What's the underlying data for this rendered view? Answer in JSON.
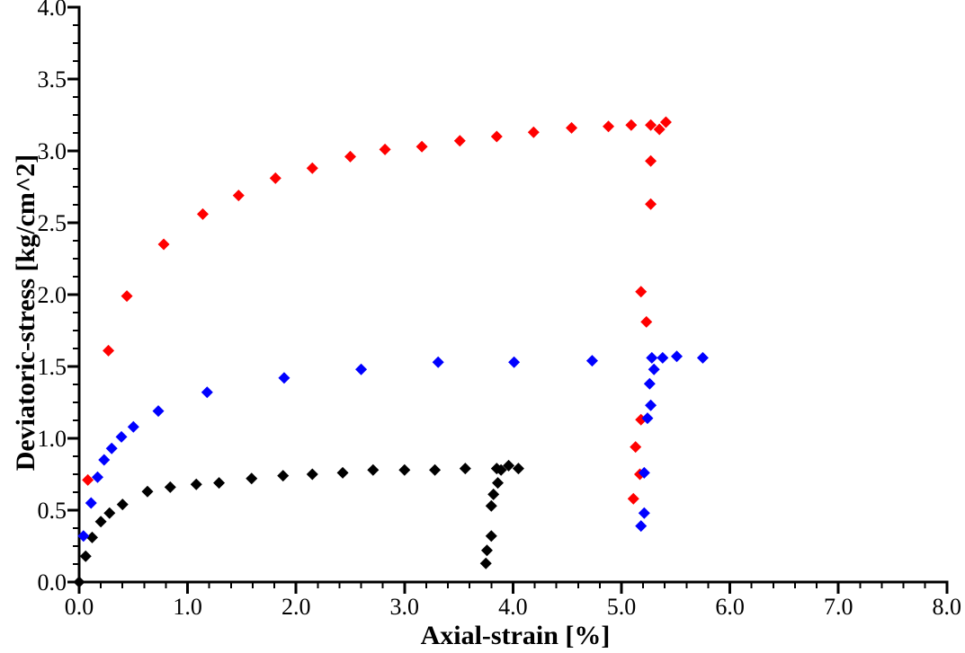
{
  "chart_data": {
    "type": "scatter",
    "title": "",
    "xlabel": "Axial-strain [%]",
    "ylabel": "Deviatoric-stress [kg/cm^2]",
    "xlim": [
      0.0,
      8.0
    ],
    "ylim": [
      0.0,
      4.0
    ],
    "grid": false,
    "legend": "none",
    "marker": "diamond",
    "x_major_ticks": [
      0.0,
      1.0,
      2.0,
      3.0,
      4.0,
      5.0,
      6.0,
      7.0,
      8.0
    ],
    "x_tick_labels": [
      "0.0",
      "1.0",
      "2.0",
      "3.0",
      "4.0",
      "5.0",
      "6.0",
      "7.0",
      "8.0"
    ],
    "x_minor_step": 0.2,
    "y_major_ticks": [
      0.0,
      0.5,
      1.0,
      1.5,
      2.0,
      2.5,
      3.0,
      3.5,
      4.0
    ],
    "y_tick_labels": [
      "0.0",
      "0.5",
      "1.0",
      "1.5",
      "2.0",
      "2.5",
      "3.0",
      "3.5",
      "4.0"
    ],
    "y_minor_step": 0.125,
    "axis_color": "#000000",
    "series": [
      {
        "name": "black-series",
        "color": "#000000",
        "points": [
          [
            0.0,
            0.0
          ],
          [
            0.06,
            0.18
          ],
          [
            0.12,
            0.31
          ],
          [
            0.2,
            0.42
          ],
          [
            0.28,
            0.48
          ],
          [
            0.4,
            0.54
          ],
          [
            0.63,
            0.63
          ],
          [
            0.84,
            0.66
          ],
          [
            1.08,
            0.68
          ],
          [
            1.29,
            0.69
          ],
          [
            1.59,
            0.72
          ],
          [
            1.88,
            0.74
          ],
          [
            2.15,
            0.75
          ],
          [
            2.43,
            0.76
          ],
          [
            2.71,
            0.78
          ],
          [
            3.0,
            0.78
          ],
          [
            3.28,
            0.78
          ],
          [
            3.56,
            0.79
          ],
          [
            3.85,
            0.79
          ],
          [
            3.89,
            0.78
          ],
          [
            3.96,
            0.81
          ],
          [
            4.05,
            0.79
          ],
          [
            3.86,
            0.69
          ],
          [
            3.82,
            0.61
          ],
          [
            3.8,
            0.53
          ],
          [
            3.8,
            0.32
          ],
          [
            3.76,
            0.22
          ],
          [
            3.75,
            0.13
          ]
        ]
      },
      {
        "name": "red-series",
        "color": "#FF0000",
        "points": [
          [
            0.08,
            0.71
          ],
          [
            0.27,
            1.61
          ],
          [
            0.44,
            1.99
          ],
          [
            0.78,
            2.35
          ],
          [
            1.14,
            2.56
          ],
          [
            1.47,
            2.69
          ],
          [
            1.81,
            2.81
          ],
          [
            2.15,
            2.88
          ],
          [
            2.5,
            2.96
          ],
          [
            2.82,
            3.01
          ],
          [
            3.16,
            3.03
          ],
          [
            3.51,
            3.07
          ],
          [
            3.85,
            3.1
          ],
          [
            4.19,
            3.13
          ],
          [
            4.54,
            3.16
          ],
          [
            4.88,
            3.17
          ],
          [
            5.09,
            3.18
          ],
          [
            5.27,
            3.18
          ],
          [
            5.35,
            3.15
          ],
          [
            5.41,
            3.2
          ],
          [
            5.27,
            2.93
          ],
          [
            5.27,
            2.63
          ],
          [
            5.18,
            2.02
          ],
          [
            5.23,
            1.81
          ],
          [
            5.18,
            1.13
          ],
          [
            5.13,
            0.94
          ],
          [
            5.17,
            0.75
          ],
          [
            5.11,
            0.58
          ]
        ]
      },
      {
        "name": "blue-series",
        "color": "#0000FF",
        "points": [
          [
            0.04,
            0.32
          ],
          [
            0.11,
            0.55
          ],
          [
            0.17,
            0.73
          ],
          [
            0.23,
            0.85
          ],
          [
            0.3,
            0.93
          ],
          [
            0.39,
            1.01
          ],
          [
            0.5,
            1.08
          ],
          [
            0.73,
            1.19
          ],
          [
            1.18,
            1.32
          ],
          [
            1.89,
            1.42
          ],
          [
            2.6,
            1.48
          ],
          [
            3.31,
            1.53
          ],
          [
            4.01,
            1.53
          ],
          [
            4.73,
            1.54
          ],
          [
            5.28,
            1.56
          ],
          [
            5.38,
            1.56
          ],
          [
            5.51,
            1.57
          ],
          [
            5.75,
            1.56
          ],
          [
            5.3,
            1.48
          ],
          [
            5.26,
            1.38
          ],
          [
            5.27,
            1.23
          ],
          [
            5.24,
            1.14
          ],
          [
            5.21,
            0.76
          ],
          [
            5.21,
            0.48
          ],
          [
            5.18,
            0.39
          ]
        ]
      }
    ]
  }
}
